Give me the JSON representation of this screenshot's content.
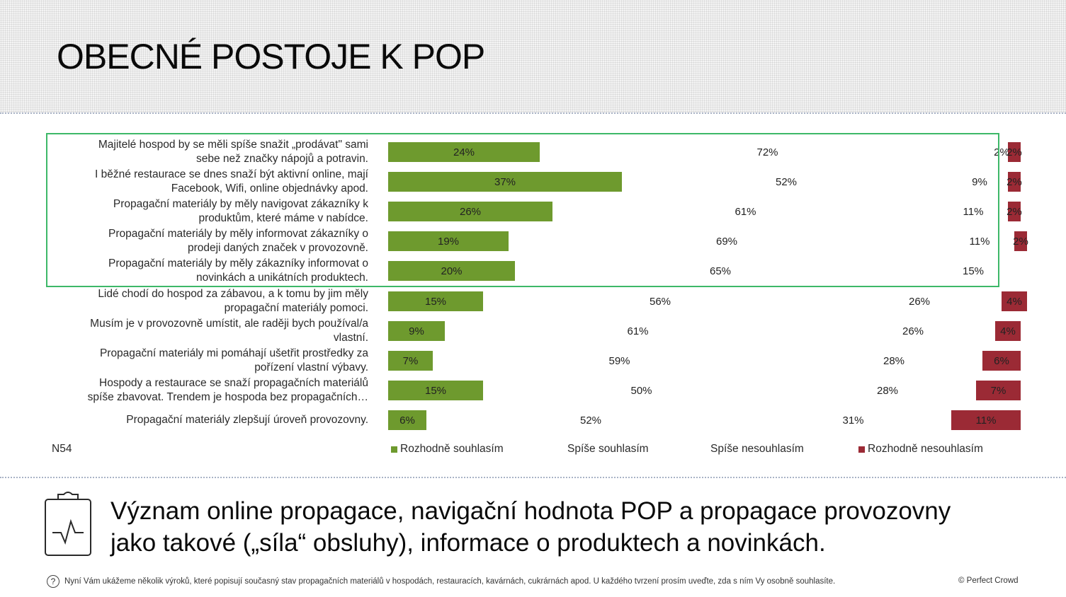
{
  "page": {
    "title": "OBECNÉ POSTOJE K POP",
    "sample_label": "N54",
    "conclusion_line1": "Význam online propagace, navigační hodnota POP a propagace provozovny",
    "conclusion_line2": "jako takové („síla“ obsluhy), informace o produktech a novinkách.",
    "footer_note": "Nyní Vám ukážeme několik výroků, které popisují současný stav propagačních materiálů v hospodách, restauracích, kavárnách, cukrárnách apod. U každého tvrzení prosím uveďte, zda s ním Vy osobně souhlasíte.",
    "copyright": "© Perfect Crowd",
    "icons": {
      "conclusion": "clipboard-pulse-icon",
      "footer": "question-circle-icon"
    }
  },
  "colors": {
    "strongly_agree": "#6e9a2e",
    "strongly_disagree": "#9b2a35",
    "highlight_border": "#3db868"
  },
  "chart_data": {
    "type": "bar",
    "orientation": "horizontal",
    "stacked": true,
    "title": "OBECNÉ POSTOJE K POP",
    "xlabel": "",
    "ylabel": "",
    "xlim": [
      0,
      100
    ],
    "grid": false,
    "legend_position": "bottom",
    "categories": [
      "Majitelé hospod by se měli spíše snažit „prodávat\" sami sebe než značky nápojů a potravin.",
      "I běžné restaurace se dnes snaží být aktivní online, mají Facebook, Wifi, online objednávky apod.",
      "Propagační materiály by měly navigovat zákazníky k produktům, které máme v nabídce.",
      "Propagační materiály by měly informovat zákazníky o prodeji daných značek v provozovně.",
      "Propagační materiály by měly zákazníky informovat o novinkách a unikátních produktech.",
      "Lidé chodí do hospod za zábavou, a k tomu by jim měly propagační materiály pomoci.",
      "Musím je v provozovně umístit, ale raději bych používal/a vlastní.",
      "Propagační materiály mi pomáhají ušetřit prostředky za pořízení vlastní výbavy.",
      "Hospody a restaurace se snaží propagačních materiálů spíše zbavovat. Trendem je hospoda bez propagačních…",
      "Propagační materiály zlepšují úroveň provozovny."
    ],
    "series": [
      {
        "name": "Rozhodně souhlasím",
        "values": [
          24,
          37,
          26,
          19,
          20,
          15,
          9,
          7,
          15,
          6
        ]
      },
      {
        "name": "Spíše souhlasím",
        "values": [
          72,
          52,
          61,
          69,
          65,
          56,
          61,
          59,
          50,
          52
        ]
      },
      {
        "name": "Spíše nesouhlasím",
        "values": [
          2,
          9,
          11,
          11,
          15,
          26,
          26,
          28,
          28,
          31
        ]
      },
      {
        "name": "Rozhodně nesouhlasím",
        "values": [
          2,
          2,
          2,
          2,
          0,
          4,
          4,
          6,
          7,
          11
        ]
      }
    ],
    "highlighted_rows": [
      0,
      1,
      2,
      3,
      4
    ]
  },
  "rows": [
    {
      "label1": "Majitelé hospod by se měli spíše snažit „prodávat\" sami",
      "label2": "sebe než značky nápojů a potravin.",
      "sa": "24%",
      "a": "72%",
      "d": "2%",
      "sd": "2%"
    },
    {
      "label1": "I běžné restaurace se dnes snaží být aktivní online, mají",
      "label2": "Facebook, Wifi, online objednávky apod.",
      "sa": "37%",
      "a": "52%",
      "d": "9%",
      "sd": "2%"
    },
    {
      "label1": "Propagační materiály by měly navigovat zákazníky k",
      "label2": "produktům, které máme v nabídce.",
      "sa": "26%",
      "a": "61%",
      "d": "11%",
      "sd": "2%"
    },
    {
      "label1": "Propagační materiály by měly informovat zákazníky o",
      "label2": "prodeji daných značek v provozovně.",
      "sa": "19%",
      "a": "69%",
      "d": "11%",
      "sd": "2%"
    },
    {
      "label1": "Propagační materiály by měly zákazníky informovat o",
      "label2": "novinkách a unikátních produktech.",
      "sa": "20%",
      "a": "65%",
      "d": "15%",
      "sd": ""
    },
    {
      "label1": "Lidé chodí do hospod za zábavou, a k tomu by jim měly",
      "label2": "propagační materiály pomoci.",
      "sa": "15%",
      "a": "56%",
      "d": "26%",
      "sd": "4%"
    },
    {
      "label1": "Musím je v provozovně umístit, ale raději bych používal/a",
      "label2": "vlastní.",
      "sa": "9%",
      "a": "61%",
      "d": "26%",
      "sd": "4%"
    },
    {
      "label1": "Propagační materiály mi pomáhají ušetřit prostředky za",
      "label2": "pořízení vlastní výbavy.",
      "sa": "7%",
      "a": "59%",
      "d": "28%",
      "sd": "6%"
    },
    {
      "label1": "Hospody a restaurace se snaží propagačních materiálů",
      "label2": "spíše zbavovat. Trendem je hospoda bez propagačních…",
      "sa": "15%",
      "a": "50%",
      "d": "28%",
      "sd": "7%"
    },
    {
      "label1": "Propagační materiály zlepšují úroveň provozovny.",
      "label2": "",
      "sa": "6%",
      "a": "52%",
      "d": "31%",
      "sd": "11%"
    }
  ],
  "legend": {
    "strongly_agree": "Rozhodně souhlasím",
    "agree": "Spíše souhlasím",
    "disagree": "Spíše nesouhlasím",
    "strongly_disagree": "Rozhodně nesouhlasím"
  }
}
